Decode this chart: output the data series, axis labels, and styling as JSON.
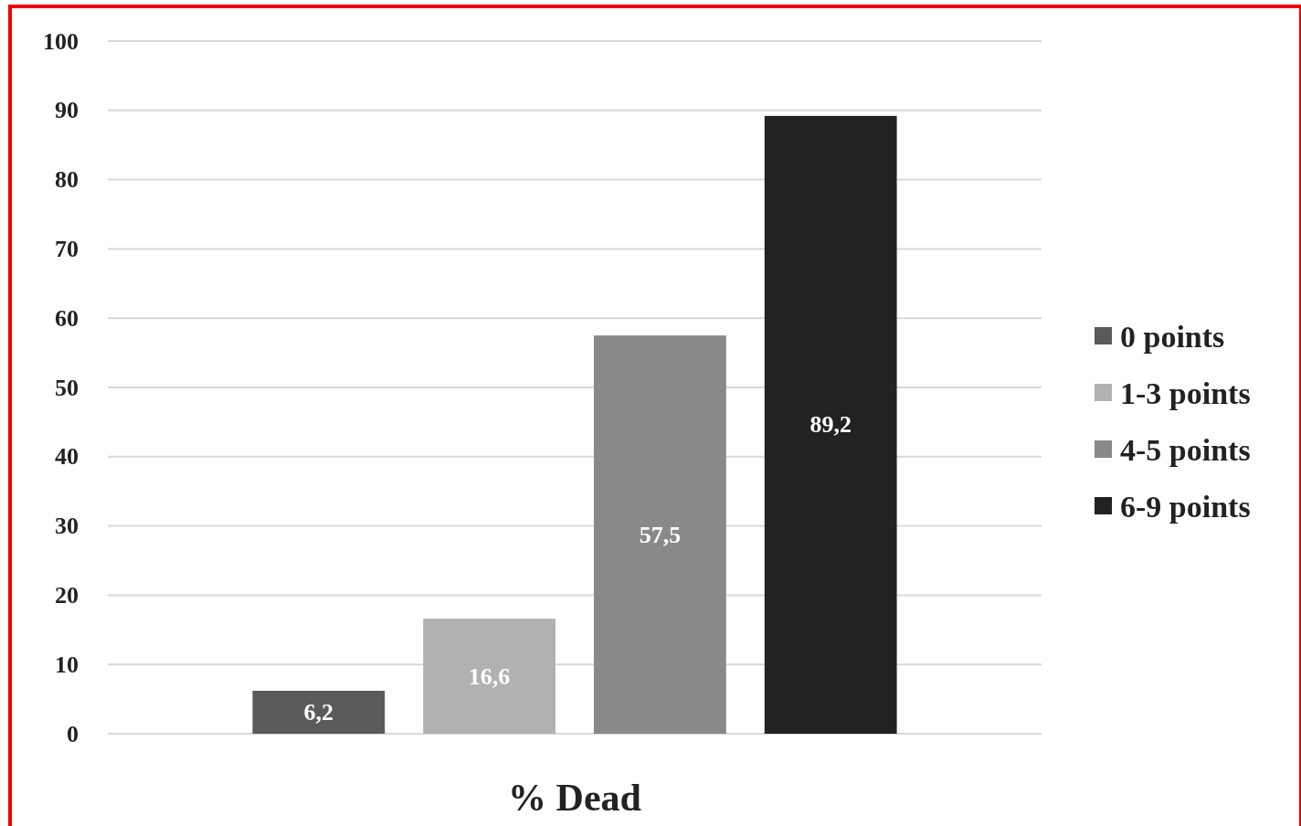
{
  "chart_data": {
    "type": "bar",
    "categories": [
      "% Dead"
    ],
    "series": [
      {
        "name": "0 points",
        "color": "#5a5a5a",
        "values": [
          6.2
        ],
        "value_labels": [
          "6,2"
        ]
      },
      {
        "name": "1-3 points",
        "color": "#b1b1b1",
        "values": [
          16.6
        ],
        "value_labels": [
          "16,6"
        ]
      },
      {
        "name": "4-5 points",
        "color": "#898989",
        "values": [
          57.5
        ],
        "value_labels": [
          "57,5"
        ]
      },
      {
        "name": "6-9 points",
        "color": "#222222",
        "values": [
          89.2
        ],
        "value_labels": [
          "89,2"
        ]
      }
    ],
    "ylim": [
      0,
      100
    ],
    "yticks": [
      0,
      10,
      20,
      30,
      40,
      50,
      60,
      70,
      80,
      90,
      100
    ],
    "grid": "y",
    "legend": "right"
  }
}
